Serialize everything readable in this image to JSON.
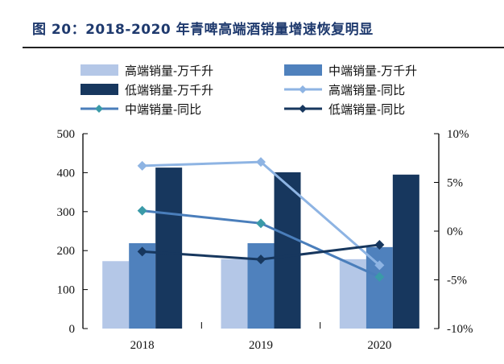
{
  "title": "图 20：2018-2020 年青啤高端酒销量增速恢复明显",
  "chart_data": {
    "type": "bar+line",
    "categories": [
      "2018",
      "2019",
      "2020"
    ],
    "series": [
      {
        "name": "高端销量-万千升",
        "type": "bar",
        "axis": "left",
        "color": "#b4c7e7",
        "values": [
          173,
          178,
          178
        ]
      },
      {
        "name": "中端销量-万千升",
        "type": "bar",
        "axis": "left",
        "color": "#4f81bd",
        "values": [
          219,
          219,
          209
        ]
      },
      {
        "name": "低端销量-万千升",
        "type": "bar",
        "axis": "left",
        "color": "#17375e",
        "values": [
          413,
          401,
          395
        ]
      },
      {
        "name": "高端销量-同比",
        "type": "line",
        "axis": "right",
        "color": "#8eb4e3",
        "marker_color": "#8eb4e3",
        "values": [
          6.7,
          7.1,
          -3.5
        ]
      },
      {
        "name": "中端销量-同比",
        "type": "line",
        "axis": "right",
        "color": "#4a7ebb",
        "marker_color": "#3a9aa8",
        "values": [
          2.1,
          0.8,
          -4.7
        ]
      },
      {
        "name": "低端销量-同比",
        "type": "line",
        "axis": "right",
        "color": "#17375e",
        "marker_color": "#17375e",
        "values": [
          -2.1,
          -2.9,
          -1.4
        ]
      }
    ],
    "ylim_left": [
      0,
      500
    ],
    "left_ticks": [
      "0",
      "100",
      "200",
      "300",
      "400",
      "500"
    ],
    "ylim_right": [
      -10,
      10
    ],
    "right_ticks": [
      "-10%",
      "-5%",
      "0%",
      "5%",
      "10%"
    ],
    "legend_placement": "top",
    "grid": false
  }
}
